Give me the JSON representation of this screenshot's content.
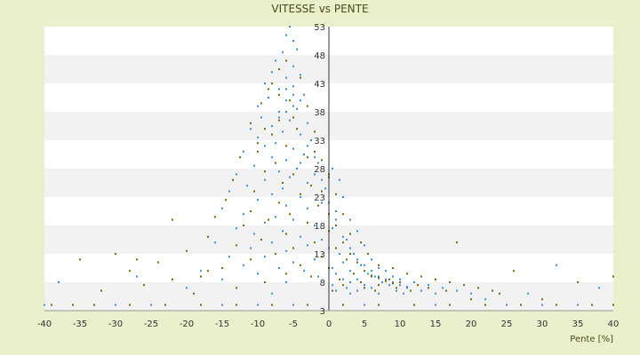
{
  "chart_data": {
    "type": "scatter",
    "title": "VITESSE vs PENTE",
    "xlabel": "Pente [%]",
    "ylabel": "",
    "xlim": [
      -40,
      40
    ],
    "ylim": [
      3,
      53
    ],
    "x_ticks": [
      -40,
      -35,
      -30,
      -25,
      -20,
      -15,
      -10,
      -5,
      0,
      5,
      10,
      15,
      20,
      25,
      30,
      35,
      40
    ],
    "y_ticks": [
      3,
      8,
      13,
      18,
      23,
      28,
      33,
      38,
      43,
      48,
      53
    ],
    "grid": "alternating horizontal bands",
    "legend": "none",
    "colors": {
      "series_a": "#3a8fd8",
      "series_b": "#6b6b00",
      "band_light": "#ffffff",
      "band_dark": "#f2f2f2",
      "background": "#ebf0cc"
    },
    "series": [
      {
        "color": "#3a8fd8",
        "points": [
          [
            -5.5,
            53
          ],
          [
            -6,
            51.5
          ],
          [
            -5,
            50.5
          ],
          [
            -4.5,
            49
          ],
          [
            -6.5,
            48.5
          ],
          [
            -7.5,
            47
          ],
          [
            -5,
            46
          ],
          [
            -8,
            45
          ],
          [
            -4,
            44.5
          ],
          [
            -6,
            44
          ],
          [
            -9,
            43
          ],
          [
            -5,
            42.5
          ],
          [
            -7,
            42
          ],
          [
            -3.5,
            41
          ],
          [
            -8.5,
            40.5
          ],
          [
            -6,
            40
          ],
          [
            -10,
            39
          ],
          [
            -4.5,
            38.5
          ],
          [
            -7,
            38
          ],
          [
            -9.5,
            37
          ],
          [
            -5.5,
            36.5
          ],
          [
            -3,
            36
          ],
          [
            -8,
            35.5
          ],
          [
            -11,
            35
          ],
          [
            -6.5,
            34.5
          ],
          [
            -4,
            34
          ],
          [
            -10,
            33.5
          ],
          [
            -2.5,
            33
          ],
          [
            -7.5,
            32.5
          ],
          [
            -9,
            32
          ],
          [
            -5,
            31.5
          ],
          [
            -12,
            31
          ],
          [
            -3.5,
            30.5
          ],
          [
            -8,
            30
          ],
          [
            -6,
            29.5
          ],
          [
            -1.5,
            29
          ],
          [
            -10.5,
            28.5
          ],
          [
            -4.5,
            28
          ],
          [
            0.5,
            28
          ],
          [
            -7,
            27.5
          ],
          [
            -13,
            27
          ],
          [
            -2,
            27
          ],
          [
            -5.5,
            26.5
          ],
          [
            -9,
            26
          ],
          [
            1.5,
            26
          ],
          [
            -3,
            25.5
          ],
          [
            -11.5,
            25
          ],
          [
            -6.5,
            24.5
          ],
          [
            -0.5,
            24.5
          ],
          [
            -14,
            24
          ],
          [
            -8,
            23.5
          ],
          [
            -4,
            23
          ],
          [
            2,
            23
          ],
          [
            -10,
            22.5
          ],
          [
            -1,
            22
          ],
          [
            -6,
            21.5
          ],
          [
            -15,
            21
          ],
          [
            -3,
            21
          ],
          [
            1,
            20.5
          ],
          [
            -12,
            20
          ],
          [
            -7.5,
            19.5
          ],
          [
            -5,
            19
          ],
          [
            3,
            19
          ],
          [
            -9,
            18.5
          ],
          [
            -2,
            18
          ],
          [
            -13,
            17.5
          ],
          [
            0.5,
            17.5
          ],
          [
            -6.5,
            17
          ],
          [
            4,
            17
          ],
          [
            -10.5,
            16.5
          ],
          [
            -4,
            16
          ],
          [
            -1,
            15.5
          ],
          [
            2.5,
            15.5
          ],
          [
            -16,
            15
          ],
          [
            -8,
            15
          ],
          [
            -3,
            14.5
          ],
          [
            5,
            14.5
          ],
          [
            -11,
            14
          ],
          [
            0,
            14
          ],
          [
            -6,
            13.5
          ],
          [
            1.5,
            13
          ],
          [
            3.5,
            13
          ],
          [
            -14,
            12.5
          ],
          [
            -9,
            12.5
          ],
          [
            -2,
            12
          ],
          [
            6,
            12
          ],
          [
            -5,
            11.5
          ],
          [
            2,
            11.5
          ],
          [
            -12,
            11
          ],
          [
            4.5,
            11
          ],
          [
            -7,
            10.5
          ],
          [
            0.5,
            10.5
          ],
          [
            7,
            10.5
          ],
          [
            -18,
            10
          ],
          [
            -3.5,
            10
          ],
          [
            3,
            10
          ],
          [
            8,
            10
          ],
          [
            -10,
            9.5
          ],
          [
            5.5,
            9.5
          ],
          [
            1,
            9.5
          ],
          [
            -1.5,
            9
          ],
          [
            6.5,
            9
          ],
          [
            9,
            9
          ],
          [
            -15,
            8.5
          ],
          [
            2,
            8.5
          ],
          [
            4,
            8.5
          ],
          [
            10,
            8.5
          ],
          [
            -6,
            8
          ],
          [
            7.5,
            8
          ],
          [
            3,
            8
          ],
          [
            12,
            8
          ],
          [
            0.5,
            7.5
          ],
          [
            5,
            7.5
          ],
          [
            8.5,
            7.5
          ],
          [
            14,
            7.5
          ],
          [
            -20,
            7
          ],
          [
            2.5,
            7
          ],
          [
            6,
            7
          ],
          [
            11,
            7
          ],
          [
            16,
            7
          ],
          [
            1,
            6.5
          ],
          [
            4,
            6.5
          ],
          [
            9.5,
            6.5
          ],
          [
            13,
            6.5
          ],
          [
            18,
            6.5
          ],
          [
            -8,
            6
          ],
          [
            3,
            6
          ],
          [
            7,
            6
          ],
          [
            10.5,
            6
          ],
          [
            15,
            6
          ],
          [
            20,
            6
          ],
          [
            -40,
            4
          ],
          [
            -30,
            4
          ],
          [
            -25,
            4
          ],
          [
            -15,
            4
          ],
          [
            -10,
            4
          ],
          [
            -5,
            4
          ],
          [
            5,
            4
          ],
          [
            15,
            4
          ],
          [
            25,
            4
          ],
          [
            30,
            4
          ],
          [
            35,
            4
          ],
          [
            32,
            11
          ],
          [
            -38,
            8
          ],
          [
            38,
            7
          ],
          [
            28,
            6
          ],
          [
            -27,
            9
          ],
          [
            22,
            5
          ],
          [
            -5,
            39
          ],
          [
            -6,
            38
          ],
          [
            -7,
            37
          ],
          [
            -4,
            40
          ],
          [
            -5,
            41
          ],
          [
            -6,
            42
          ],
          [
            -3,
            32
          ],
          [
            -2,
            30
          ],
          [
            -4,
            29
          ],
          [
            -1,
            26
          ],
          [
            0,
            22
          ],
          [
            1,
            19
          ],
          [
            2,
            16
          ],
          [
            3,
            14
          ],
          [
            4,
            12
          ],
          [
            5,
            11
          ],
          [
            6,
            10
          ],
          [
            7,
            9
          ],
          [
            8,
            8.5
          ],
          [
            9,
            8
          ],
          [
            10,
            7.5
          ],
          [
            11,
            7.2
          ]
        ]
      },
      {
        "color": "#6b6b00",
        "points": [
          [
            -6,
            47
          ],
          [
            -7,
            45.5
          ],
          [
            -4,
            44
          ],
          [
            -8.5,
            42
          ],
          [
            -5.5,
            40
          ],
          [
            -9.5,
            39.5
          ],
          [
            -3,
            39
          ],
          [
            -7,
            36.5
          ],
          [
            -11,
            36
          ],
          [
            -4.5,
            35
          ],
          [
            -8,
            34
          ],
          [
            -2,
            34.5
          ],
          [
            -10,
            32.5
          ],
          [
            -6,
            32
          ],
          [
            -12.5,
            30
          ],
          [
            -3,
            30
          ],
          [
            -7.5,
            29
          ],
          [
            -1,
            29.5
          ],
          [
            -9,
            27.5
          ],
          [
            -5,
            27
          ],
          [
            -13.5,
            26
          ],
          [
            0,
            26.5
          ],
          [
            -6.5,
            25.5
          ],
          [
            -2.5,
            25
          ],
          [
            -10.5,
            24
          ],
          [
            -4,
            23.5
          ],
          [
            1,
            23.5
          ],
          [
            -14.5,
            22.5
          ],
          [
            -7,
            22
          ],
          [
            -1.5,
            21.5
          ],
          [
            -11,
            20.5
          ],
          [
            -5.5,
            20
          ],
          [
            2,
            20
          ],
          [
            -16,
            19.5
          ],
          [
            -8.5,
            19
          ],
          [
            -3,
            18.5
          ],
          [
            -12,
            18
          ],
          [
            0,
            17
          ],
          [
            -6,
            16.5
          ],
          [
            3,
            16.5
          ],
          [
            -17,
            16
          ],
          [
            -9.5,
            15.5
          ],
          [
            -2,
            15
          ],
          [
            4.5,
            15
          ],
          [
            -13,
            14.5
          ],
          [
            -5,
            14
          ],
          [
            1,
            14
          ],
          [
            -20,
            13.5
          ],
          [
            -7.5,
            13
          ],
          [
            5.5,
            13
          ],
          [
            -1,
            12.5
          ],
          [
            -11,
            12
          ],
          [
            2.5,
            12
          ],
          [
            -24,
            11.5
          ],
          [
            -4,
            11
          ],
          [
            7,
            11
          ],
          [
            -15,
            10.5
          ],
          [
            0,
            10.5
          ],
          [
            9,
            10.5
          ],
          [
            -28,
            10
          ],
          [
            -6,
            9.5
          ],
          [
            3.5,
            9.5
          ],
          [
            11,
            9.5
          ],
          [
            -18,
            9
          ],
          [
            -2.5,
            9
          ],
          [
            6,
            9
          ],
          [
            13,
            9
          ],
          [
            -22,
            8.5
          ],
          [
            1.5,
            8.5
          ],
          [
            8.5,
            8.5
          ],
          [
            15,
            8.5
          ],
          [
            -9,
            8
          ],
          [
            4.5,
            8
          ],
          [
            10,
            8
          ],
          [
            17,
            8
          ],
          [
            -26,
            7.5
          ],
          [
            2,
            7.5
          ],
          [
            7,
            7.5
          ],
          [
            12.5,
            7.5
          ],
          [
            19,
            7.5
          ],
          [
            -13,
            7
          ],
          [
            5,
            7
          ],
          [
            9.5,
            7
          ],
          [
            14,
            7
          ],
          [
            21,
            7
          ],
          [
            -32,
            6.5
          ],
          [
            0.5,
            6.5
          ],
          [
            6.5,
            6.5
          ],
          [
            11.5,
            6.5
          ],
          [
            16.5,
            6.5
          ],
          [
            23,
            6.5
          ],
          [
            -36,
            4
          ],
          [
            -33,
            4
          ],
          [
            -28,
            4
          ],
          [
            -23,
            4
          ],
          [
            -18,
            4
          ],
          [
            -13,
            4
          ],
          [
            -8,
            4
          ],
          [
            -3,
            4
          ],
          [
            2,
            4
          ],
          [
            7,
            4
          ],
          [
            12,
            4
          ],
          [
            17,
            4
          ],
          [
            22,
            4
          ],
          [
            27,
            4
          ],
          [
            32,
            4
          ],
          [
            37,
            4
          ],
          [
            40,
            4
          ],
          [
            -39,
            4
          ],
          [
            -35,
            12
          ],
          [
            -30,
            13
          ],
          [
            -27,
            12
          ],
          [
            -22,
            19
          ],
          [
            18,
            15
          ],
          [
            26,
            10
          ],
          [
            35,
            8
          ],
          [
            40,
            9
          ],
          [
            -17,
            10
          ],
          [
            -19,
            6
          ],
          [
            30,
            5
          ],
          [
            24,
            6
          ],
          [
            20,
            5
          ],
          [
            -7,
            41
          ],
          [
            -8,
            43
          ],
          [
            -5,
            37
          ],
          [
            -9,
            35
          ],
          [
            -10,
            31
          ],
          [
            -2,
            31
          ],
          [
            0,
            27
          ],
          [
            -1,
            24
          ],
          [
            0,
            20
          ],
          [
            1,
            18
          ],
          [
            2,
            15
          ],
          [
            3,
            13
          ],
          [
            4,
            11.5
          ],
          [
            5,
            10
          ],
          [
            6,
            9.2
          ],
          [
            7,
            8.7
          ],
          [
            8,
            8.2
          ],
          [
            9,
            7.8
          ]
        ]
      }
    ]
  }
}
